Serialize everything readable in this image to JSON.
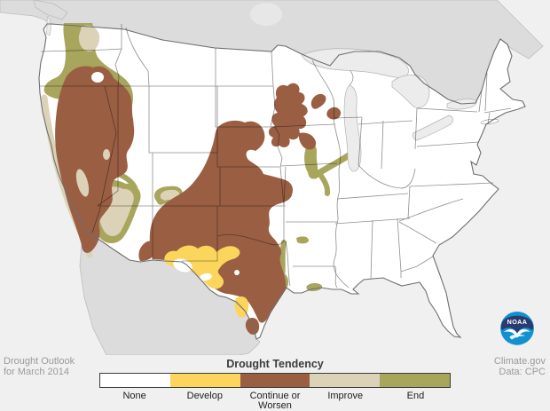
{
  "credits": {
    "left_line1": "Drought Outlook",
    "left_line2": "for March 2014",
    "right_line1": "Climate.gov",
    "right_line2": "Data: CPC"
  },
  "legend": {
    "title": "Drought Tendency",
    "items": [
      {
        "label": "None",
        "color": "#ffffff"
      },
      {
        "label": "Develop",
        "color": "#fbd55c"
      },
      {
        "label": "Continue or Worsen",
        "color": "#9a5f43"
      },
      {
        "label": "Improve",
        "color": "#dcd2b8"
      },
      {
        "label": "End",
        "color": "#a8a55c"
      }
    ]
  },
  "logo": {
    "text": "NOAA"
  },
  "map_colors": {
    "background": "#f0f0f0",
    "neighbor_land": "#dcdcdc",
    "water": "#ececec",
    "us_land": "#ffffff",
    "drought_continue": "#9a5f43",
    "drought_develop": "#fbd55c",
    "drought_improve": "#dcd2b8",
    "drought_end": "#a8a55c"
  }
}
